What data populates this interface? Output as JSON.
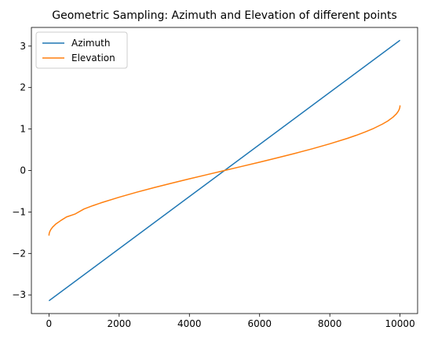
{
  "chart_data": {
    "type": "line",
    "title": "Geometric Sampling: Azimuth and Elevation of different points",
    "xlabel": "",
    "ylabel": "",
    "xlim": [
      -500,
      10500
    ],
    "ylim": [
      -3.45,
      3.45
    ],
    "xticks": [
      0,
      2000,
      4000,
      6000,
      8000,
      10000
    ],
    "xtick_labels": [
      "0",
      "2000",
      "4000",
      "6000",
      "8000",
      "10000"
    ],
    "yticks": [
      -3,
      -2,
      -1,
      0,
      1,
      2,
      3
    ],
    "ytick_labels": [
      "−3",
      "−2",
      "−1",
      "0",
      "1",
      "2",
      "3"
    ],
    "grid": false,
    "legend_position": "upper-left",
    "series": [
      {
        "name": "Azimuth",
        "color": "#1f77b4",
        "x": [
          0,
          10000
        ],
        "y": [
          -3.1416,
          3.1416
        ]
      },
      {
        "name": "Elevation",
        "color": "#ff7f0e",
        "x": [
          0,
          5,
          20,
          50,
          100,
          200,
          350,
          500,
          750,
          1000,
          1250,
          1500,
          2000,
          2500,
          3000,
          3500,
          4000,
          4500,
          5000,
          5500,
          6000,
          6500,
          7000,
          7500,
          8000,
          8500,
          8750,
          9000,
          9250,
          9500,
          9650,
          9800,
          9900,
          9950,
          9980,
          9995,
          10000
        ],
        "y": [
          -1.5708,
          -1.5261,
          -1.4808,
          -1.4289,
          -1.3694,
          -1.287,
          -1.199,
          -1.1198,
          -1.0472,
          -0.9273,
          -0.848,
          -0.7754,
          -0.6435,
          -0.5236,
          -0.4115,
          -0.3047,
          -0.2014,
          -0.1002,
          0.0,
          0.1002,
          0.2014,
          0.3047,
          0.4115,
          0.5236,
          0.6435,
          0.7754,
          0.848,
          0.9273,
          1.016,
          1.1198,
          1.1927,
          1.287,
          1.3694,
          1.4289,
          1.4808,
          1.5261,
          1.5708
        ]
      }
    ]
  }
}
